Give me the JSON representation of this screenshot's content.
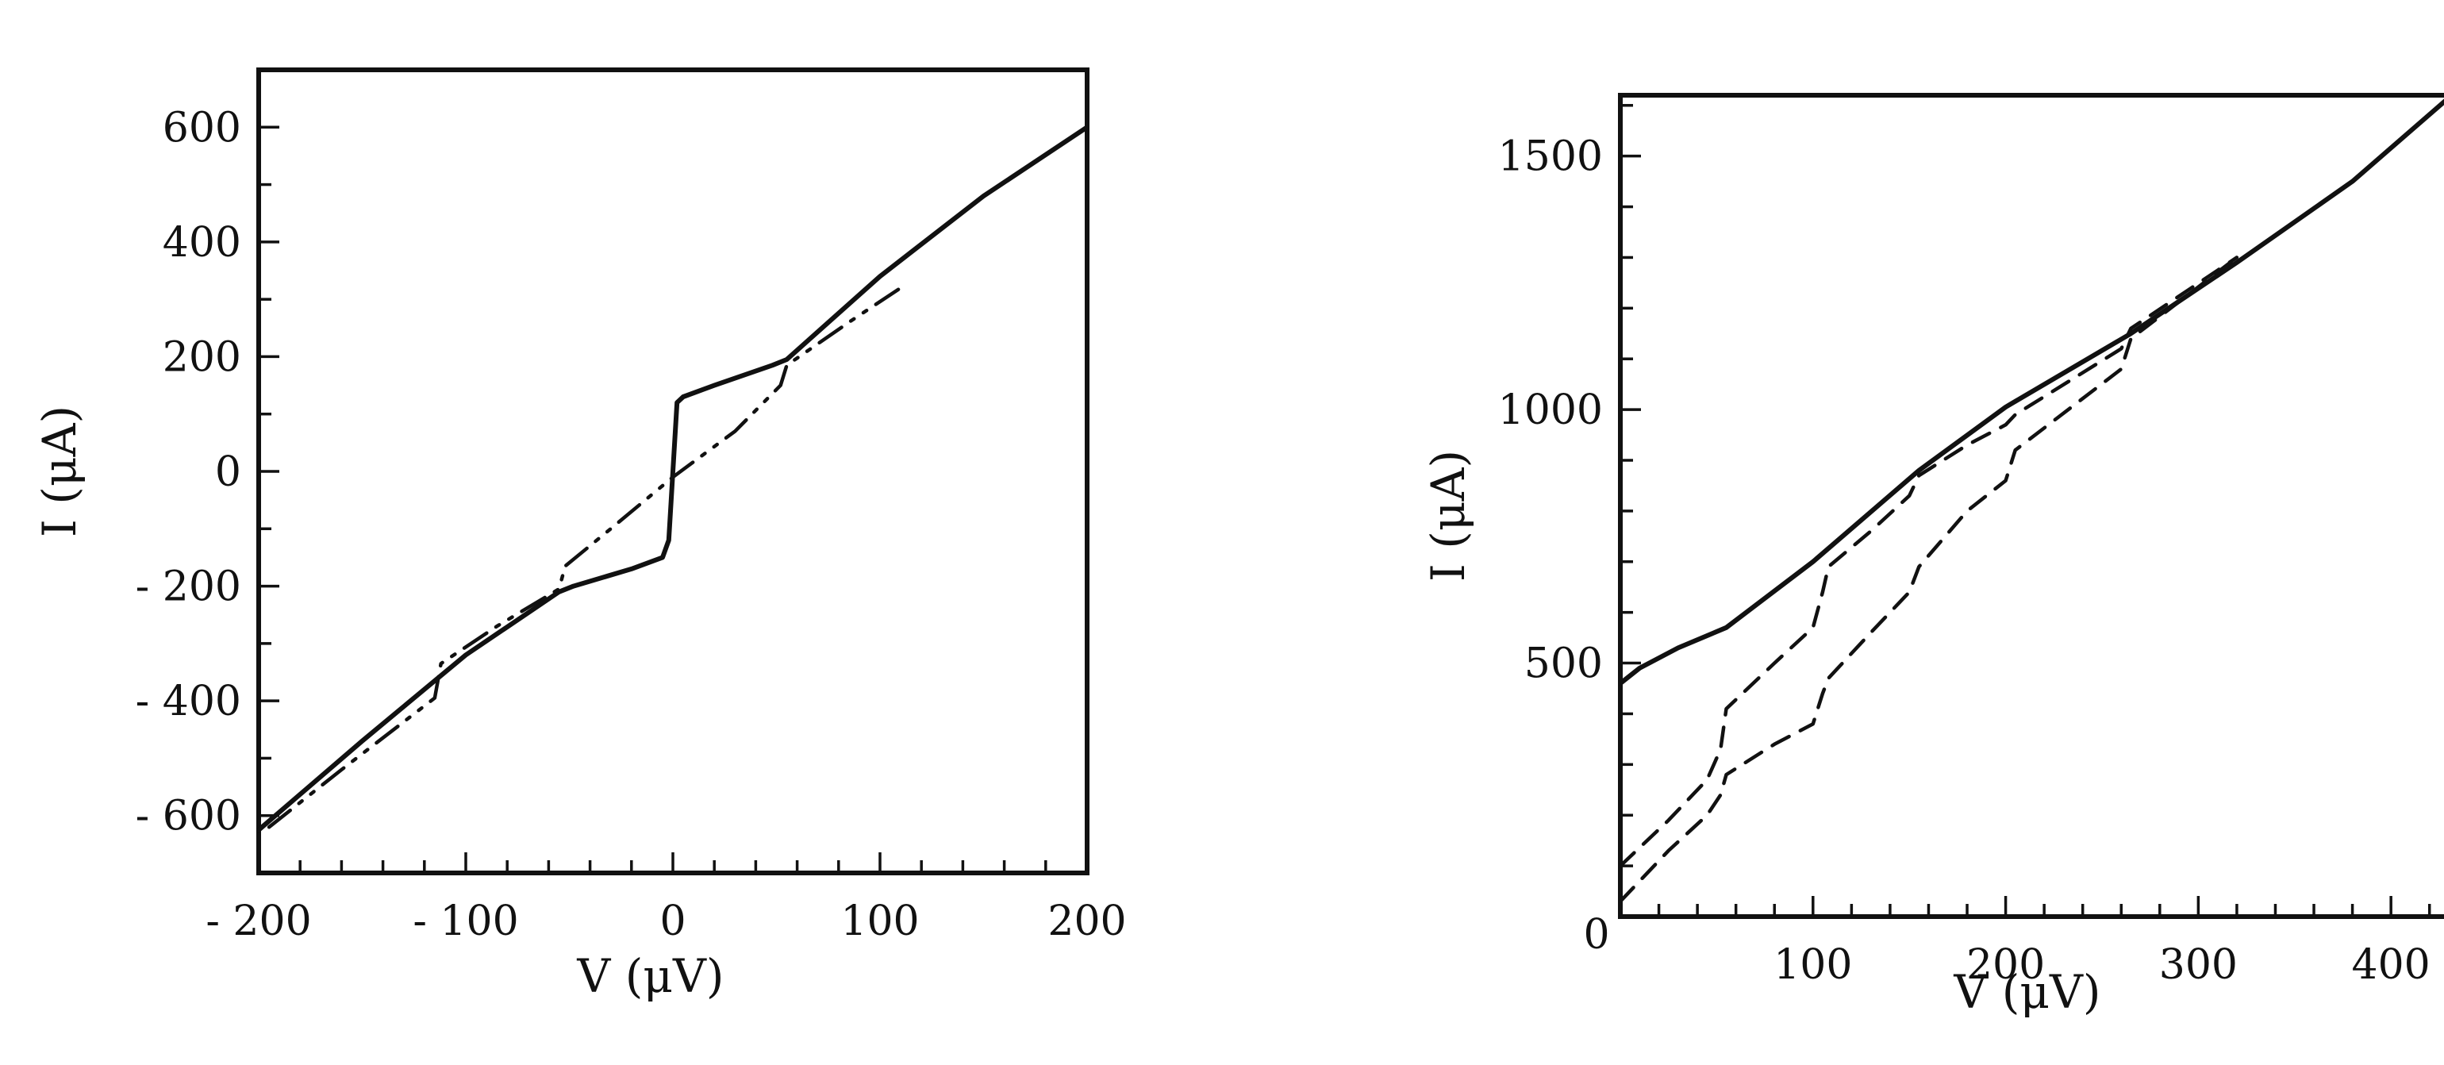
{
  "chart_data": [
    {
      "type": "line",
      "xlabel": "V (μV)",
      "ylabel": "I (μA)",
      "xlim": [
        -200,
        200
      ],
      "ylim": [
        -700,
        700
      ],
      "xticks": [
        -200,
        -100,
        0,
        100,
        200
      ],
      "xtick_labels": [
        "- 200",
        "- 100",
        "0",
        "100",
        "200"
      ],
      "yticks": [
        -600,
        -400,
        -200,
        0,
        200,
        400,
        600
      ],
      "ytick_labels": [
        "- 600",
        "- 400",
        "- 200",
        "0",
        "200",
        "400",
        "600"
      ],
      "x_minor_step": 20,
      "y_minor_step": 100,
      "grid": false,
      "series": [
        {
          "style": "solid",
          "x": [
            -200,
            -150,
            -100,
            -55,
            -48,
            -20,
            -5,
            -2,
            0,
            2,
            5,
            20,
            48,
            55,
            100,
            150,
            200
          ],
          "y": [
            -625,
            -470,
            -320,
            -210,
            -200,
            -170,
            -150,
            -120,
            0,
            120,
            130,
            150,
            185,
            195,
            340,
            480,
            600
          ]
        },
        {
          "style": "dash-dot-dot",
          "x": [
            -195,
            -160,
            -115,
            -112,
            -85,
            -55,
            -52,
            -30,
            0,
            30,
            52,
            55,
            85,
            110
          ],
          "y": [
            -620,
            -520,
            -395,
            -335,
            -270,
            -205,
            -165,
            -100,
            -10,
            70,
            150,
            185,
            260,
            320
          ]
        }
      ]
    },
    {
      "type": "line",
      "xlabel": "V (μV)",
      "ylabel": "I (μA)",
      "xlim": [
        0,
        430
      ],
      "ylim": [
        0,
        1620
      ],
      "xticks": [
        100,
        200,
        300,
        400
      ],
      "xtick_labels": [
        "100",
        "200",
        "300",
        "400"
      ],
      "yticks": [
        0,
        500,
        1000,
        1500
      ],
      "ytick_labels": [
        "0",
        "500",
        "1000",
        "1500"
      ],
      "origin_label": "0",
      "x_minor_step": 20,
      "y_minor_step": 100,
      "grid": false,
      "series": [
        {
          "style": "solid",
          "x": [
            0,
            10,
            30,
            55,
            100,
            155,
            200,
            265,
            320,
            380,
            430
          ],
          "y": [
            460,
            490,
            530,
            570,
            700,
            880,
            1005,
            1150,
            1290,
            1450,
            1615
          ]
        },
        {
          "style": "dashed",
          "x": [
            0,
            25,
            45,
            52,
            55,
            80,
            100,
            105,
            108,
            130,
            150,
            155,
            180,
            200,
            205,
            260,
            265,
            320
          ],
          "y": [
            100,
            190,
            270,
            330,
            410,
            500,
            570,
            640,
            690,
            760,
            830,
            870,
            930,
            970,
            990,
            1120,
            1160,
            1300
          ]
        },
        {
          "style": "dashed",
          "x": [
            0,
            25,
            45,
            52,
            55,
            80,
            100,
            105,
            108,
            130,
            150,
            155,
            180,
            200,
            205,
            260,
            265,
            320
          ],
          "y": [
            30,
            130,
            200,
            240,
            280,
            340,
            380,
            440,
            470,
            560,
            640,
            690,
            800,
            860,
            920,
            1080,
            1140,
            1300
          ]
        }
      ]
    }
  ]
}
